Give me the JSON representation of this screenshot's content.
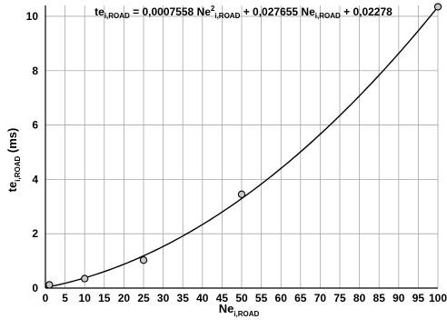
{
  "chart_data": {
    "type": "scatter",
    "title": "",
    "equation": {
      "lhs_main": "te",
      "lhs_sub": "i,ROAD",
      "part1": " = 0,0007558 Ne",
      "sup": "2",
      "sub1": "i,ROAD",
      "part2": " + 0,027655 Ne",
      "sub2": "i,ROAD",
      "part3": " + 0,02278"
    },
    "xlabel": {
      "main": "Ne",
      "sub": "i,ROAD"
    },
    "ylabel": {
      "main": "te",
      "sub": "i,ROAD",
      "unit": " (ms)"
    },
    "xlim": [
      0,
      100
    ],
    "ylim": [
      0,
      10.4
    ],
    "x_ticks": [
      0,
      5,
      10,
      15,
      20,
      25,
      30,
      35,
      40,
      45,
      50,
      55,
      60,
      65,
      70,
      75,
      80,
      85,
      90,
      95,
      100
    ],
    "x_tick_labels": [
      "0",
      "5",
      "10",
      "15",
      "20",
      "25",
      "30",
      "35",
      "40",
      "45",
      "50",
      "55",
      "60",
      "65",
      "70",
      "75",
      "80",
      "85",
      "90",
      "95",
      "100"
    ],
    "y_ticks": [
      0,
      2,
      4,
      6,
      8,
      10
    ],
    "y_tick_labels": [
      "0",
      "2",
      "4",
      "6",
      "8",
      "10"
    ],
    "grid": true,
    "series": [
      {
        "values": [
          {
            "x": 1,
            "y": 0.12
          },
          {
            "x": 10,
            "y": 0.35
          },
          {
            "x": 25,
            "y": 1.03
          },
          {
            "x": 50,
            "y": 3.45
          },
          {
            "x": 100,
            "y": 10.35
          }
        ]
      }
    ],
    "trendline": {
      "type": "polynomial",
      "coefficients": [
        0.0007558,
        0.027655,
        0.02278
      ]
    }
  }
}
